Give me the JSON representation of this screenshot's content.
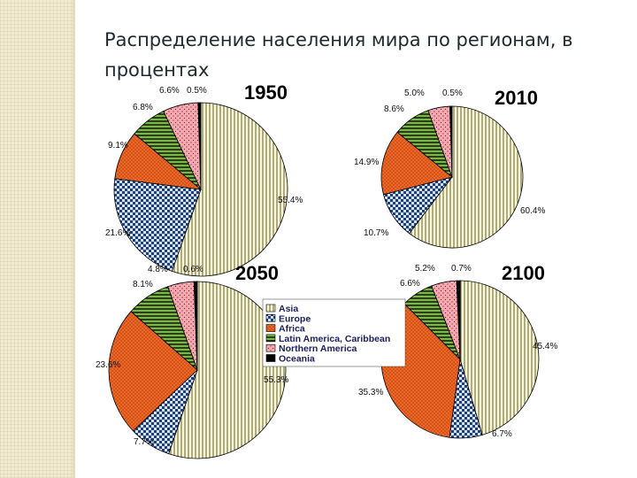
{
  "slide": {
    "title": "Распределение населения мира по регионам, в процентах"
  },
  "colors": {
    "asia": "#fdf8c9",
    "europe": "#d5e1f2",
    "africa": "#f26522",
    "latin_america": "#7ab648",
    "northern_america": "#f6a8b0",
    "oceania": "#000000",
    "title_text": "#1f2a2f",
    "legend_text": "#1d2060",
    "side_strip": "#f1ebd4"
  },
  "chart_data": [
    {
      "type": "pie",
      "title": "1950",
      "categories": [
        "Asia",
        "Europe",
        "Africa",
        "Latin America, Caribbean",
        "Northern America",
        "Oceania"
      ],
      "values": [
        55.4,
        21.6,
        9.1,
        6.8,
        6.6,
        0.5
      ],
      "labels": [
        "55.4%",
        "21.6%",
        "9.1%",
        "6.8%",
        "6.6%",
        "0.5%"
      ]
    },
    {
      "type": "pie",
      "title": "2010",
      "categories": [
        "Asia",
        "Europe",
        "Africa",
        "Latin America, Caribbean",
        "Northern America",
        "Oceania"
      ],
      "values": [
        60.4,
        10.7,
        14.9,
        8.6,
        5.0,
        0.5
      ],
      "labels": [
        "60.4%",
        "10.7%",
        "14.9%",
        "8.6%",
        "5.0%",
        "0.5%"
      ]
    },
    {
      "type": "pie",
      "title": "2050",
      "categories": [
        "Asia",
        "Europe",
        "Africa",
        "Latin America, Caribbean",
        "Northern America",
        "Oceania"
      ],
      "values": [
        55.3,
        7.7,
        23.6,
        8.1,
        4.8,
        0.6
      ],
      "labels": [
        "55.3%",
        "7.7%",
        "23.6%",
        "8.1%",
        "4.8%",
        "0.6%"
      ]
    },
    {
      "type": "pie",
      "title": "2100",
      "categories": [
        "Asia",
        "Europe",
        "Africa",
        "Latin America, Caribbean",
        "Northern America",
        "Oceania"
      ],
      "values": [
        45.4,
        6.7,
        35.3,
        6.6,
        5.2,
        0.7
      ],
      "labels": [
        "45.4%",
        "6.7%",
        "35.3%",
        "6.6%",
        "5.2%",
        "0.7%"
      ]
    }
  ],
  "legend": {
    "items": [
      {
        "name": "Asia",
        "pattern": "vstripe"
      },
      {
        "name": "Europe",
        "pattern": "check"
      },
      {
        "name": "Africa",
        "pattern": "dots"
      },
      {
        "name": "Latin America, Caribbean",
        "pattern": "hstripe"
      },
      {
        "name": "Northern America",
        "pattern": "speckle"
      },
      {
        "name": "Oceania",
        "pattern": "solid"
      }
    ]
  }
}
